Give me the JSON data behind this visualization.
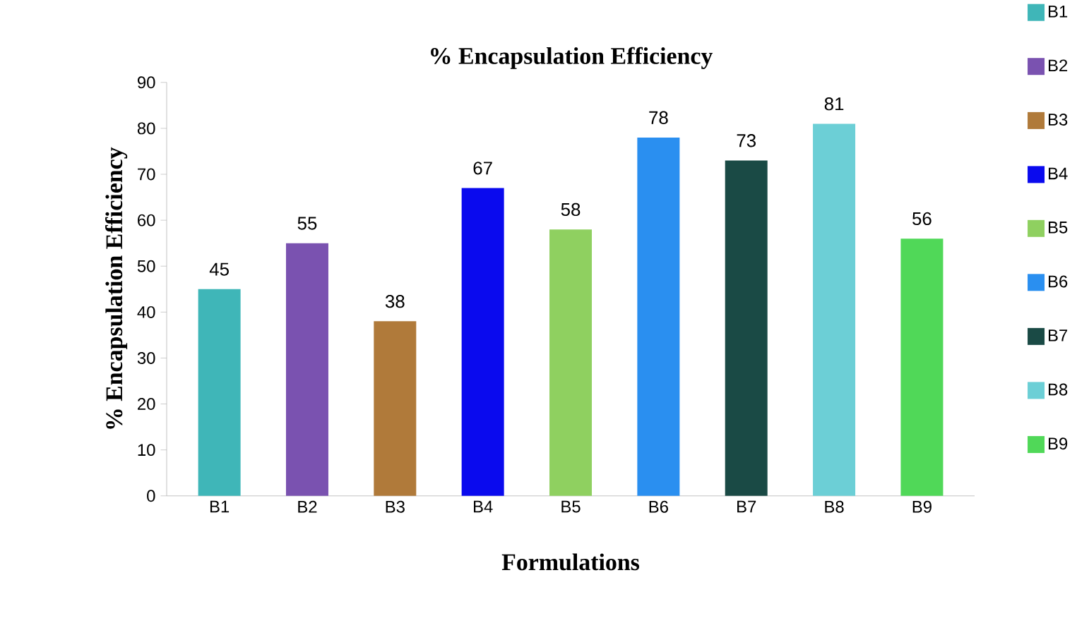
{
  "chart_data": {
    "type": "bar",
    "title": "% Encapsulation Efficiency",
    "xlabel": "Formulations",
    "ylabel": "% Encapsulation Efficiency",
    "categories": [
      "B1",
      "B2",
      "B3",
      "B4",
      "B5",
      "B6",
      "B7",
      "B8",
      "B9"
    ],
    "series": [
      {
        "name": "B1",
        "color": "#3fb6b8",
        "values": [
          45,
          null,
          null,
          null,
          null,
          null,
          null,
          null,
          null
        ]
      },
      {
        "name": "B2",
        "color": "#7a52b0",
        "values": [
          null,
          55,
          null,
          null,
          null,
          null,
          null,
          null,
          null
        ]
      },
      {
        "name": "B3",
        "color": "#b07a3a",
        "values": [
          null,
          null,
          38,
          null,
          null,
          null,
          null,
          null,
          null
        ]
      },
      {
        "name": "B4",
        "color": "#0a0aee",
        "values": [
          null,
          null,
          null,
          67,
          null,
          null,
          null,
          null,
          null
        ]
      },
      {
        "name": "B5",
        "color": "#8fd060",
        "values": [
          null,
          null,
          null,
          null,
          58,
          null,
          null,
          null,
          null
        ]
      },
      {
        "name": "B6",
        "color": "#2a8ff0",
        "values": [
          null,
          null,
          null,
          null,
          null,
          78,
          null,
          null,
          null
        ]
      },
      {
        "name": "B7",
        "color": "#1a4a45",
        "values": [
          null,
          null,
          null,
          null,
          null,
          null,
          73,
          null,
          null
        ]
      },
      {
        "name": "B8",
        "color": "#6ccfd6",
        "values": [
          null,
          null,
          null,
          null,
          null,
          null,
          null,
          81,
          null
        ]
      },
      {
        "name": "B9",
        "color": "#50d858",
        "values": [
          null,
          null,
          null,
          null,
          null,
          null,
          null,
          null,
          56
        ]
      }
    ],
    "ylim": [
      0,
      90
    ],
    "yticks": [
      0,
      10,
      20,
      30,
      40,
      50,
      60,
      70,
      80,
      90
    ],
    "data_labels": true,
    "legend": "right",
    "grid": false
  }
}
